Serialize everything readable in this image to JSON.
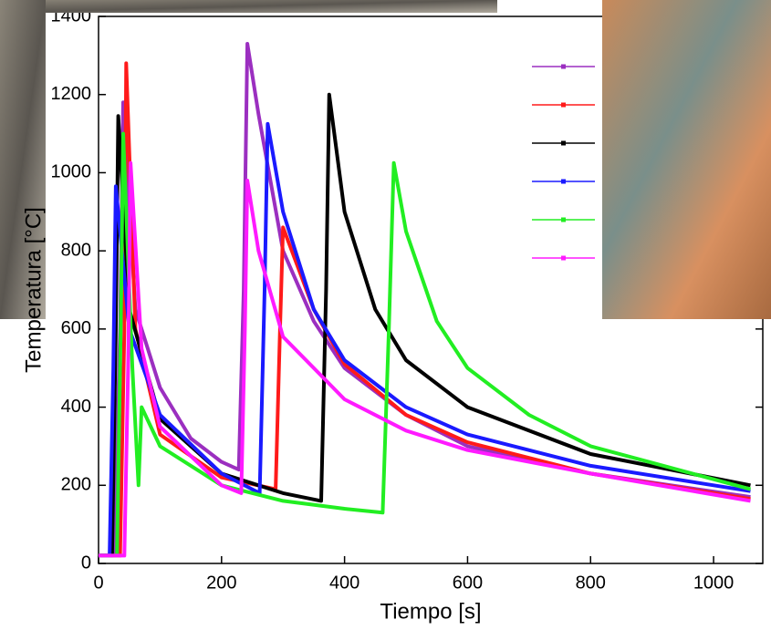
{
  "chart_data": {
    "type": "line",
    "x_label": "Tiempo [s]",
    "y_label": "Temperatura [°C]",
    "xlim": [
      0,
      1080
    ],
    "ylim": [
      0,
      1400
    ],
    "xticks": [
      0,
      200,
      400,
      600,
      800,
      1000
    ],
    "yticks": [
      0,
      200,
      400,
      600,
      800,
      1000,
      1200,
      1400
    ],
    "grid": false,
    "series": [
      {
        "color": "#9b2fc0",
        "x": [
          0,
          25,
          35,
          40,
          60,
          100,
          150,
          200,
          228,
          236,
          242,
          260,
          300,
          350,
          400,
          500,
          600,
          800,
          1060
        ],
        "values": [
          20,
          20,
          600,
          1180,
          650,
          450,
          320,
          260,
          240,
          700,
          1330,
          1150,
          800,
          620,
          500,
          380,
          300,
          230,
          170
        ]
      },
      {
        "color": "#ff1a1a",
        "x": [
          0,
          35,
          42,
          45,
          60,
          100,
          200,
          288,
          295,
          300,
          350,
          400,
          500,
          600,
          800,
          1060
        ],
        "values": [
          20,
          20,
          600,
          1280,
          600,
          330,
          220,
          190,
          600,
          860,
          650,
          510,
          380,
          310,
          230,
          165
        ]
      },
      {
        "color": "#000000",
        "x": [
          0,
          22,
          28,
          32,
          50,
          100,
          200,
          300,
          362,
          370,
          375,
          400,
          450,
          500,
          600,
          800,
          1060
        ],
        "values": [
          20,
          20,
          600,
          1145,
          650,
          370,
          230,
          180,
          160,
          700,
          1200,
          900,
          650,
          520,
          400,
          280,
          200
        ]
      },
      {
        "color": "#1a1aff",
        "x": [
          0,
          18,
          24,
          28,
          50,
          100,
          200,
          262,
          270,
          275,
          300,
          350,
          400,
          500,
          600,
          800,
          1060
        ],
        "values": [
          20,
          20,
          500,
          965,
          600,
          380,
          230,
          180,
          700,
          1125,
          900,
          650,
          520,
          400,
          330,
          250,
          185
        ]
      },
      {
        "color": "#22ee22",
        "x": [
          0,
          30,
          36,
          40,
          55,
          65,
          70,
          100,
          200,
          300,
          400,
          462,
          472,
          480,
          500,
          550,
          600,
          700,
          800,
          1060
        ],
        "values": [
          20,
          20,
          600,
          1100,
          500,
          200,
          400,
          300,
          200,
          160,
          140,
          130,
          600,
          1025,
          850,
          620,
          500,
          380,
          300,
          190
        ]
      },
      {
        "color": "#ff1aff",
        "x": [
          0,
          42,
          48,
          52,
          70,
          100,
          200,
          232,
          238,
          242,
          260,
          300,
          400,
          500,
          600,
          800,
          1060
        ],
        "values": [
          20,
          20,
          500,
          1025,
          550,
          350,
          200,
          180,
          600,
          980,
          800,
          580,
          420,
          340,
          290,
          230,
          160
        ]
      }
    ]
  }
}
